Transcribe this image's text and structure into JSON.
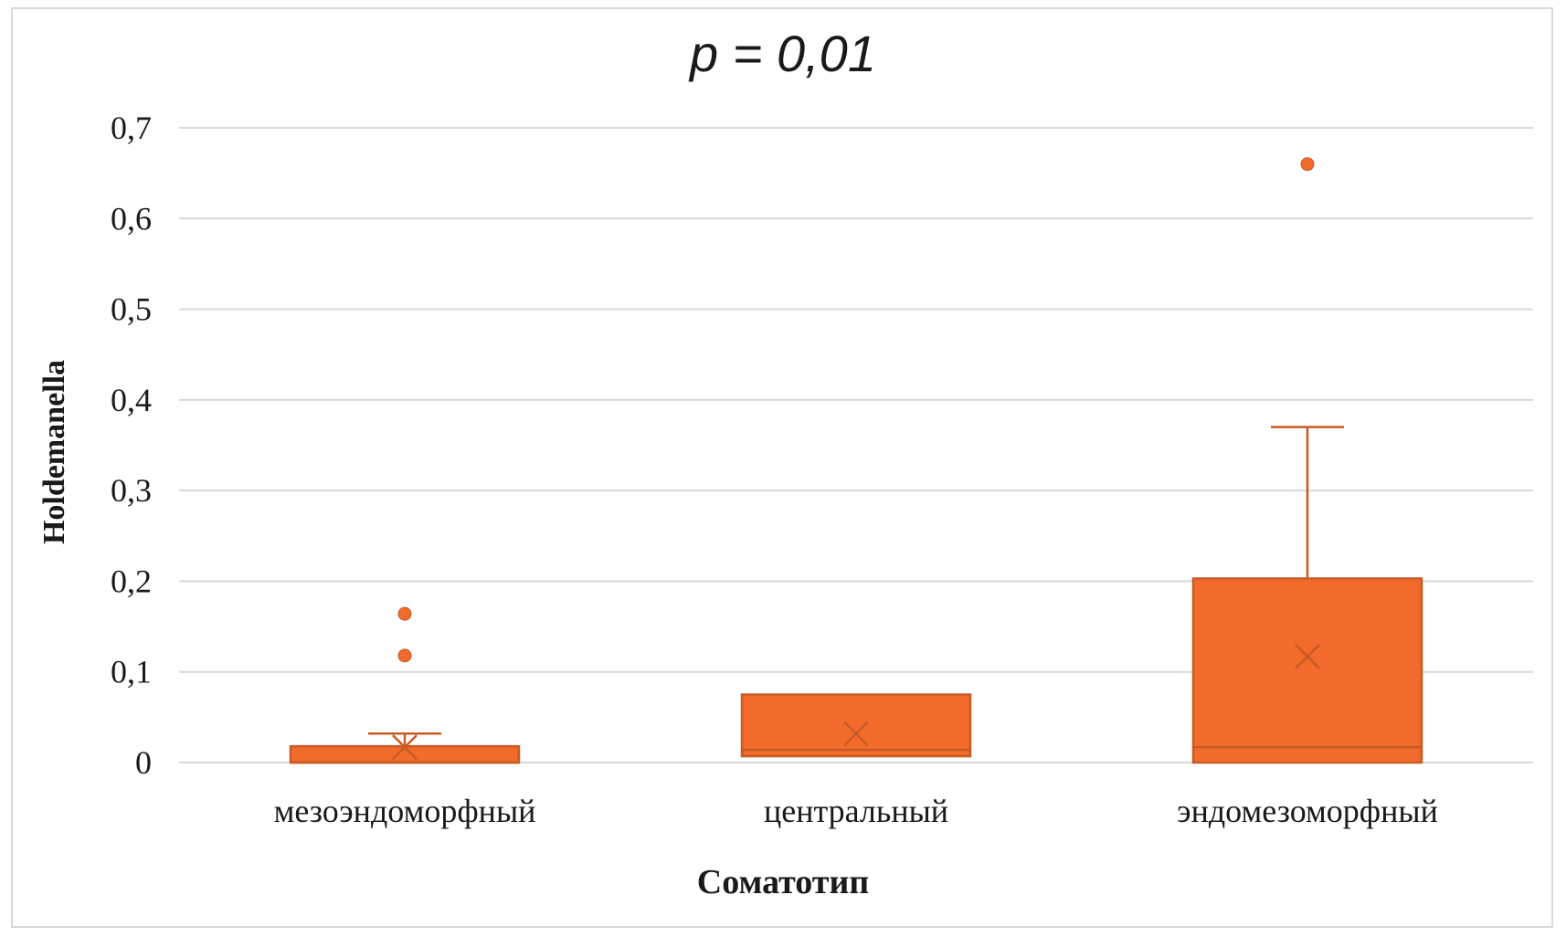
{
  "chart_data": {
    "type": "box",
    "title": "p = 0,01",
    "xlabel": "Соматотип",
    "ylabel": "Holdemanella",
    "ylim": [
      0,
      0.7
    ],
    "y_ticks": [
      "0",
      "0,1",
      "0,2",
      "0,3",
      "0,4",
      "0,5",
      "0,6",
      "0,7"
    ],
    "categories": [
      "мезоэндоморфный",
      "центральный",
      "эндомезоморфный"
    ],
    "boxes": [
      {
        "q1": 0.0,
        "median": 0.0,
        "q3": 0.018,
        "whisker_low": 0.0,
        "whisker_high": 0.032,
        "mean": 0.017,
        "outliers": [
          0.118,
          0.164
        ]
      },
      {
        "q1": 0.007,
        "median": 0.014,
        "q3": 0.075,
        "whisker_low": 0.007,
        "whisker_high": 0.075,
        "mean": 0.032,
        "outliers": []
      },
      {
        "q1": 0.0,
        "median": 0.017,
        "q3": 0.203,
        "whisker_low": 0.0,
        "whisker_high": 0.37,
        "mean": 0.117,
        "outliers": [
          0.66
        ]
      }
    ],
    "grid": true,
    "colors": {
      "box_fill": "#f26b2b",
      "box_stroke": "#c85a25",
      "grid": "#d9d9d9"
    }
  }
}
